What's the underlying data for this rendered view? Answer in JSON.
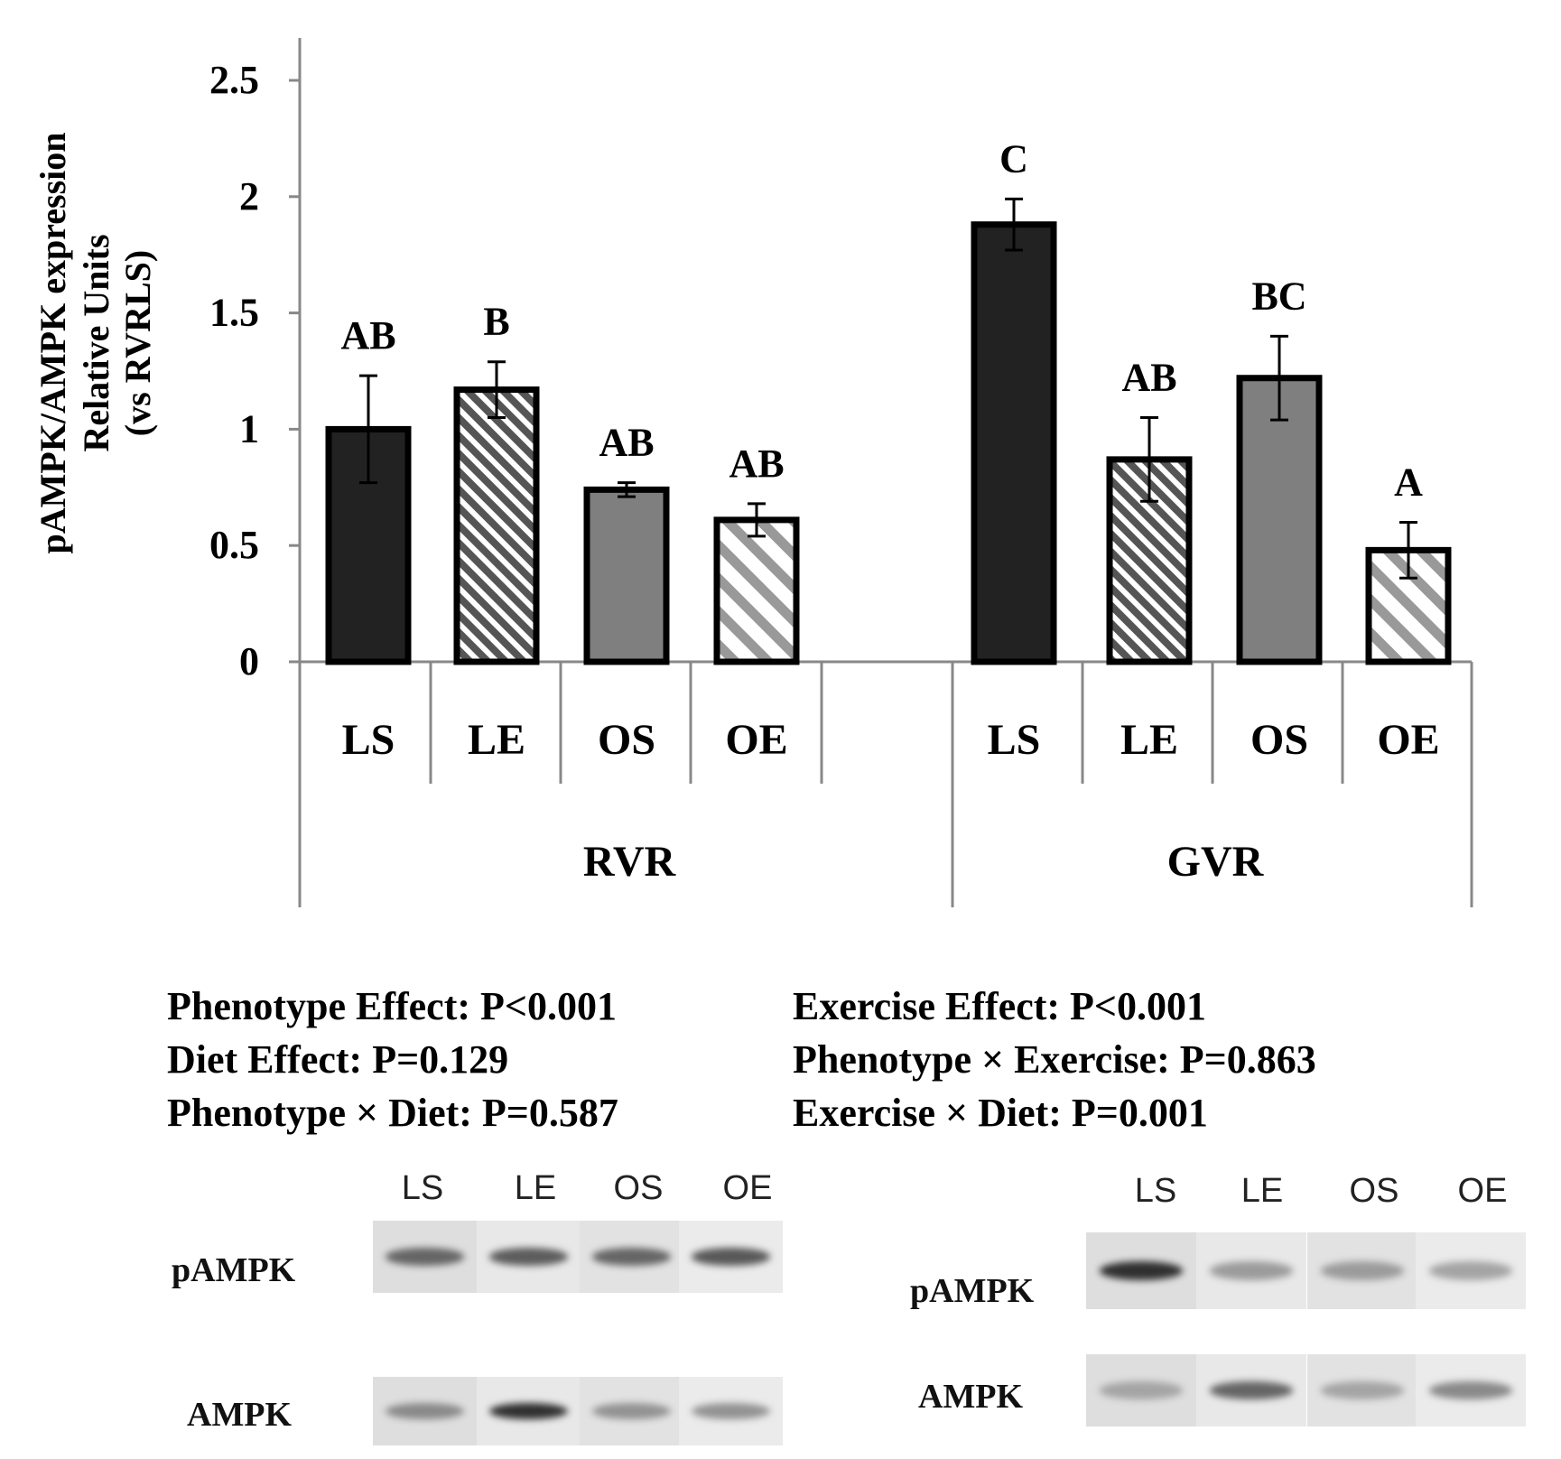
{
  "chart_data": {
    "type": "bar",
    "ylabel": [
      "pAMPK/AMPK expression",
      "Relative Units",
      "(vs RVRLS)"
    ],
    "ylim": [
      0,
      2.5
    ],
    "yticks": [
      "0",
      "0.5",
      "1",
      "1.5",
      "2",
      "2.5"
    ],
    "groups": [
      {
        "name": "RVR",
        "bars": [
          {
            "label": "LS",
            "value": 1.0,
            "error": 0.23,
            "sig": "AB",
            "fill": "solid-dark"
          },
          {
            "label": "LE",
            "value": 1.17,
            "error": 0.12,
            "sig": "B",
            "fill": "hatch-dark"
          },
          {
            "label": "OS",
            "value": 0.74,
            "error": 0.03,
            "sig": "AB",
            "fill": "solid-gray"
          },
          {
            "label": "OE",
            "value": 0.61,
            "error": 0.07,
            "sig": "AB",
            "fill": "hatch-light"
          }
        ]
      },
      {
        "name": "GVR",
        "bars": [
          {
            "label": "LS",
            "value": 1.88,
            "error": 0.11,
            "sig": "C",
            "fill": "solid-dark"
          },
          {
            "label": "LE",
            "value": 0.87,
            "error": 0.18,
            "sig": "AB",
            "fill": "hatch-dark"
          },
          {
            "label": "OS",
            "value": 1.22,
            "error": 0.18,
            "sig": "BC",
            "fill": "solid-gray"
          },
          {
            "label": "OE",
            "value": 0.48,
            "error": 0.12,
            "sig": "A",
            "fill": "hatch-light"
          }
        ]
      }
    ],
    "colors": {
      "dark": "#222222",
      "gray": "#7f7f7f",
      "hatch_dark": "#555555",
      "hatch_light": "#999999",
      "axis": "#888888"
    }
  },
  "stats": {
    "left": [
      "Phenotype Effect: P<0.001",
      "Diet Effect: P=0.129",
      "Phenotype × Diet: P=0.587"
    ],
    "right": [
      "Exercise Effect: P<0.001",
      "Phenotype × Exercise: P=0.863",
      "Exercise × Diet: P=0.001"
    ]
  },
  "blots": {
    "left": {
      "lanes": [
        "LS",
        "LE",
        "OS",
        "OE"
      ],
      "rows": [
        "pAMPK",
        "AMPK"
      ],
      "band_intensity": [
        [
          0.55,
          0.6,
          0.55,
          0.62
        ],
        [
          0.35,
          0.85,
          0.3,
          0.3
        ]
      ]
    },
    "right": {
      "lanes": [
        "LS",
        "LE",
        "OS",
        "OE"
      ],
      "rows": [
        "pAMPK",
        "AMPK"
      ],
      "band_intensity": [
        [
          0.85,
          0.25,
          0.25,
          0.2
        ],
        [
          0.2,
          0.55,
          0.2,
          0.35
        ]
      ]
    }
  }
}
